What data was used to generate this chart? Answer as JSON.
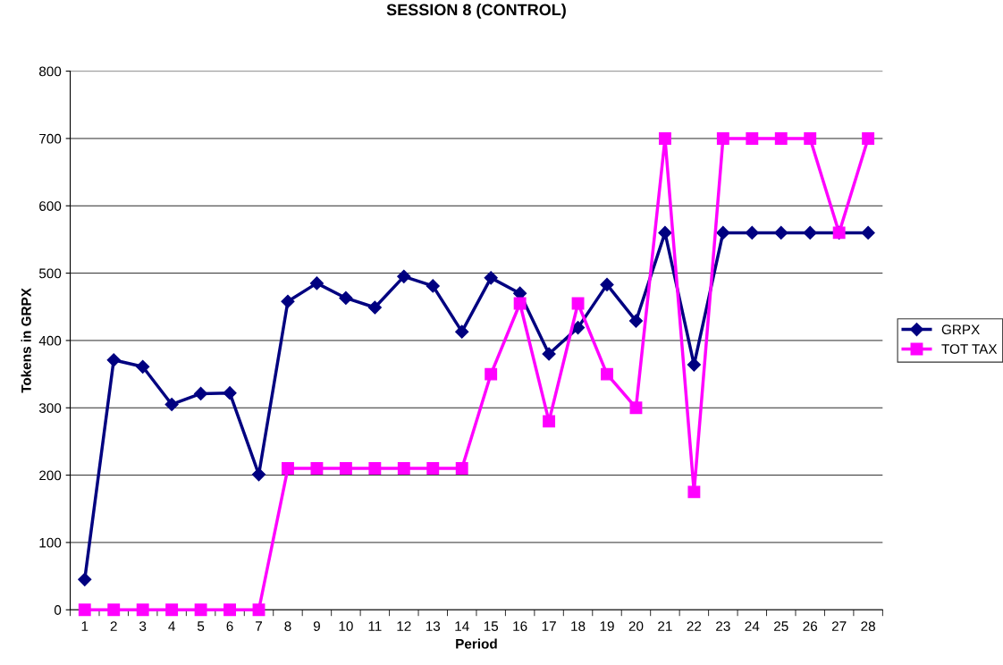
{
  "chart_data": {
    "type": "line",
    "title": "SESSION 8 (CONTROL)",
    "xlabel": "Period",
    "ylabel": "Tokens in GRPX",
    "categories": [
      "1",
      "2",
      "3",
      "4",
      "5",
      "6",
      "7",
      "8",
      "9",
      "10",
      "11",
      "12",
      "13",
      "14",
      "15",
      "16",
      "17",
      "18",
      "19",
      "20",
      "21",
      "22",
      "23",
      "24",
      "25",
      "26",
      "27",
      "28"
    ],
    "series": [
      {
        "name": "GRPX",
        "color": "#000080",
        "marker": "diamond",
        "values": [
          45,
          371,
          361,
          305,
          321,
          322,
          201,
          458,
          485,
          463,
          449,
          495,
          481,
          413,
          493,
          470,
          380,
          419,
          483,
          429,
          560,
          364,
          560,
          560,
          560,
          560,
          560,
          560
        ]
      },
      {
        "name": "TOT TAX",
        "color": "#ff00ff",
        "marker": "square",
        "values": [
          0,
          0,
          0,
          0,
          0,
          0,
          0,
          210,
          210,
          210,
          210,
          210,
          210,
          210,
          350,
          455,
          280,
          455,
          350,
          300,
          700,
          175,
          700,
          700,
          700,
          700,
          560,
          700
        ]
      }
    ],
    "ylim": [
      0,
      800
    ],
    "yticks": [
      0,
      100,
      200,
      300,
      400,
      500,
      600,
      700,
      800
    ],
    "grid": "y",
    "legend": "right"
  }
}
